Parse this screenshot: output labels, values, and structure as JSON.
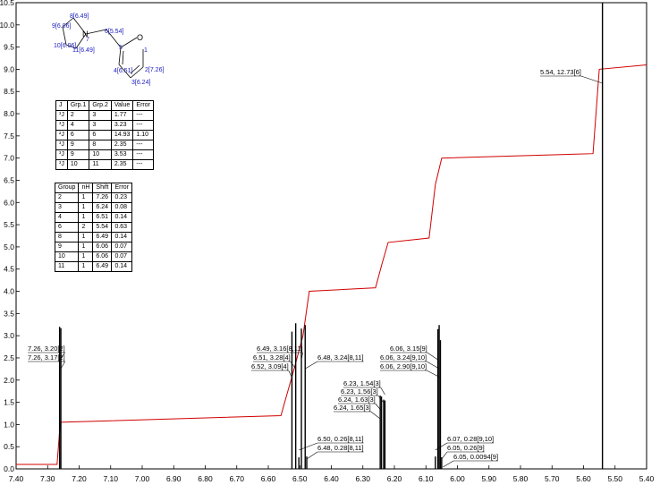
{
  "chart_data": {
    "type": "line",
    "title": "",
    "xlabel": "",
    "ylabel": "",
    "xlim": [
      7.4,
      5.4
    ],
    "ylim": [
      0,
      10.5
    ],
    "x_ticks": [
      "7.40",
      "7.30",
      "7.20",
      "7.10",
      "7.00",
      "6.90",
      "6.80",
      "6.70",
      "6.60",
      "6.50",
      "6.40",
      "6.30",
      "6.20",
      "6.10",
      "6.00",
      "5.90",
      "5.80",
      "5.70",
      "5.60",
      "5.50",
      "5.40"
    ],
    "y_ticks": [
      "0.0",
      "0.5",
      "1.0",
      "1.5",
      "2.0",
      "2.5",
      "3.0",
      "3.5",
      "4.0",
      "4.5",
      "5.0",
      "5.5",
      "6.0",
      "6.5",
      "7.0",
      "7.5",
      "8.0",
      "8.5",
      "9.0",
      "9.5",
      "10.0",
      "10.5"
    ],
    "series": [
      {
        "kind": "spectrum",
        "points": [
          [
            7.262,
            3.2
          ],
          [
            7.258,
            3.17
          ],
          [
            6.525,
            3.09
          ],
          [
            6.513,
            3.28
          ],
          [
            6.495,
            3.16
          ],
          [
            6.503,
            0.26
          ],
          [
            6.483,
            3.24
          ],
          [
            6.478,
            0.28
          ],
          [
            6.245,
            1.65
          ],
          [
            6.241,
            1.63
          ],
          [
            6.234,
            1.56
          ],
          [
            6.23,
            1.54
          ],
          [
            6.07,
            0.28
          ],
          [
            6.062,
            3.15
          ],
          [
            6.058,
            3.24
          ],
          [
            6.054,
            2.9
          ],
          [
            6.05,
            0.26
          ],
          [
            6.046,
            0.0094
          ],
          [
            5.54,
            12.73
          ]
        ]
      },
      {
        "kind": "integral",
        "points": [
          [
            7.4,
            0.1
          ],
          [
            7.27,
            0.1
          ],
          [
            7.26,
            1.05
          ],
          [
            6.56,
            1.2
          ],
          [
            6.52,
            2.2
          ],
          [
            6.49,
            3.0
          ],
          [
            6.47,
            4.0
          ],
          [
            6.26,
            4.08
          ],
          [
            6.24,
            4.6
          ],
          [
            6.22,
            5.1
          ],
          [
            6.09,
            5.2
          ],
          [
            6.07,
            6.4
          ],
          [
            6.05,
            7.0
          ],
          [
            5.57,
            7.1
          ],
          [
            5.55,
            9.0
          ],
          [
            5.4,
            9.1
          ]
        ]
      }
    ],
    "peak_labels": [
      {
        "text": "7.26, 3.20[2]"
      },
      {
        "text": "7.26, 3.17[2]"
      },
      {
        "text": "6.49, 3.16[8,11]"
      },
      {
        "text": "6.51, 3.28[4]"
      },
      {
        "text": "6.52, 3.09[4]"
      },
      {
        "text": "6.48, 3.24[8,11]"
      },
      {
        "text": "6.50, 0.26[8,11]"
      },
      {
        "text": "6.48, 0.28[8,11]"
      },
      {
        "text": "6.23, 1.54[3]"
      },
      {
        "text": "6.23, 1.56[3]"
      },
      {
        "text": "6.24, 1.63[3]"
      },
      {
        "text": "6.24, 1.65[3]"
      },
      {
        "text": "6.06, 3.15[9]"
      },
      {
        "text": "6.06, 3.24[9,10]"
      },
      {
        "text": "6.06, 2.90[9,10]"
      },
      {
        "text": "6.07, 0.28[9,10]"
      },
      {
        "text": "6.05, 0.26[9]"
      },
      {
        "text": "6.05, 0.0094[9]"
      },
      {
        "text": "5.54, 12.73[6]"
      }
    ],
    "grid": false,
    "colors": {
      "spectrum": "#000000",
      "integral": "#d00000",
      "molecule": "#2020c0"
    }
  },
  "molecule_labels": {
    "n8": "8[6.49]",
    "n9": "9[6.06]",
    "n10": "10[6.06]",
    "n11": "11[6.49]",
    "n7": "7",
    "nN": "N",
    "n6": "6[5.54]",
    "n5": "5",
    "nO": "O",
    "n1": "1",
    "n4": "4[6.51]",
    "n2": "2[7.26]",
    "n3": "3[6.24]"
  },
  "coupling_table": {
    "headers": [
      "J",
      "Grp.1",
      "Grp.2",
      "Value",
      "Error"
    ],
    "rows": [
      [
        "³J",
        "2",
        "3",
        "1.77",
        "---"
      ],
      [
        "³J",
        "4",
        "3",
        "3.23",
        "---"
      ],
      [
        "²J",
        "6",
        "6",
        "14.93",
        "1.10"
      ],
      [
        "³J",
        "9",
        "8",
        "2.35",
        "---"
      ],
      [
        "³J",
        "9",
        "10",
        "3.53",
        "---"
      ],
      [
        "³J",
        "10",
        "11",
        "2.35",
        "---"
      ]
    ]
  },
  "shift_table": {
    "headers": [
      "Group",
      "nH",
      "Shift",
      "Error"
    ],
    "rows": [
      [
        "2",
        "1",
        "7.26",
        "0.23"
      ],
      [
        "3",
        "1",
        "6.24",
        "0.08"
      ],
      [
        "4",
        "1",
        "6.51",
        "0.14"
      ],
      [
        "6",
        "2",
        "5.54",
        "0.63"
      ],
      [
        "8",
        "1",
        "6.49",
        "0.14"
      ],
      [
        "9",
        "1",
        "6.06",
        "0.07"
      ],
      [
        "10",
        "1",
        "6.06",
        "0.07"
      ],
      [
        "11",
        "1",
        "6.49",
        "0.14"
      ]
    ]
  }
}
